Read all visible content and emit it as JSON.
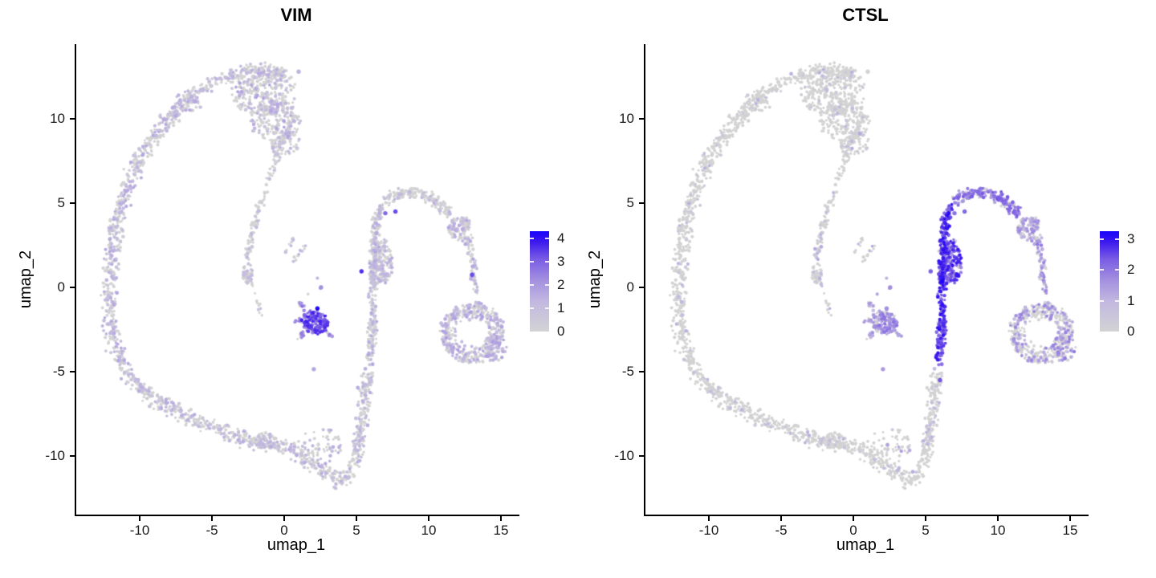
{
  "chart_data": {
    "type": "scatter",
    "description": "Two-panel UMAP gene-expression feature plot (single-cell). Same cell embedding in both panels, colored by expression of VIM (left) and CTSL (right). Grey = 0, blue = high.",
    "xlabel": "umap_1",
    "ylabel": "umap_2",
    "xlim": [
      -14.4,
      16.3
    ],
    "ylim": [
      -13.5,
      14.4
    ],
    "grid": false,
    "legend_position": "right-of-panel colorbar",
    "colors": {
      "background": "#ffffff",
      "axis": "#000000",
      "tick_text": "#1a1a1a",
      "zero_expression_point": "#d3d3d3",
      "gradient_stops": [
        [
          0,
          "#d3d3d3"
        ],
        [
          0.3,
          "#c2b8e0"
        ],
        [
          0.52,
          "#a28ee0"
        ],
        [
          0.72,
          "#7a5de4"
        ],
        [
          0.9,
          "#3a17ef"
        ],
        [
          1,
          "#1803fa"
        ]
      ]
    },
    "panels": [
      {
        "title": "VIM",
        "xlabel": "umap_1",
        "ylabel": "umap_2",
        "x_ticks": [
          -10,
          -5,
          0,
          5,
          10,
          15
        ],
        "y_ticks": [
          10,
          5,
          0,
          -5,
          -10
        ],
        "seed": 99,
        "colorbar": {
          "tick_labels": [
            4,
            3,
            2,
            1,
            0
          ],
          "vmax": 4.3
        },
        "expression": {
          "loop_top_arc": {
            "p": 0.32,
            "v": [
              0.6,
              1.6
            ]
          },
          "cloud_upper": {
            "p": 0.28,
            "v": [
              0.6,
              1.8
            ]
          },
          "cloud_mid": {
            "p": 0.28,
            "v": [
              0.6,
              1.8
            ]
          },
          "cloud_low": {
            "p": 0.25,
            "v": [
              0.6,
              1.5
            ]
          },
          "loop_left": {
            "p": 0.38,
            "v": [
              0.6,
              1.7
            ]
          },
          "loop_bottom": {
            "p": 0.32,
            "v": [
              0.6,
              1.6
            ]
          },
          "bottom_bump": {
            "p": 0.25,
            "v": [
              0.6,
              1.4
            ]
          },
          "bottom_scatter": {
            "p": 0.45,
            "v": [
              0.8,
              1.8
            ]
          },
          "right_strand": {
            "p": 0.3,
            "v": [
              0.7,
              1.7
            ]
          },
          "leg_clump": {
            "p": 0.3,
            "v": [
              0.7,
              1.7
            ]
          },
          "arch_top": {
            "p": 0.15,
            "v": [
              0.6,
              1.5
            ]
          },
          "arch_clump": {
            "p": 0.35,
            "v": [
              0.7,
              1.7
            ]
          },
          "arch_desc": {
            "p": 0.35,
            "v": [
              0.8,
              1.8
            ]
          },
          "ring": {
            "p": 0.42,
            "v": [
              0.7,
              1.9
            ]
          },
          "ring_edge": {
            "p": 0.55,
            "v": [
              0.8,
              2.0
            ]
          },
          "spur": {
            "p": 0.12,
            "v": [
              0.6,
              1.3
            ]
          },
          "spur_clump": {
            "p": 0.2,
            "v": [
              0.6,
              1.3
            ]
          },
          "spur_tail": {
            "p": 0.2,
            "v": [
              0.6,
              1.2
            ]
          },
          "center_blob": {
            "p": 0.96,
            "v": [
              2.1,
              3.8
            ]
          },
          "arm_up": {
            "p": 0.8,
            "v": [
              1.6,
              2.8
            ]
          },
          "arm_down": {
            "p": 0.8,
            "v": [
              1.6,
              2.8
            ]
          },
          "arm_right": {
            "p": 0.75,
            "v": [
              1.5,
              2.6
            ]
          },
          "arm_left": {
            "p": 0.75,
            "v": [
              1.5,
              2.6
            ]
          },
          "blob_dots": {
            "p": 0.6,
            "v": [
              1.2,
              2.4
            ]
          },
          "fork_a": {
            "p": 0.3,
            "v": [
              0.7,
              1.5
            ]
          },
          "fork_b": {
            "p": 0.3,
            "v": [
              0.7,
              1.5
            ]
          }
        }
      },
      {
        "title": "CTSL",
        "xlabel": "umap_1",
        "ylabel": "umap_2",
        "x_ticks": [
          -10,
          -5,
          0,
          5,
          10,
          15
        ],
        "y_ticks": [
          10,
          5,
          0,
          -5,
          -10
        ],
        "seed": 77,
        "colorbar": {
          "tick_labels": [
            3,
            2,
            1,
            0
          ],
          "vmax": 3.26
        },
        "expression": {
          "loop_top_arc": {
            "p": 0.04,
            "v": [
              0.6,
              1.2
            ]
          },
          "cloud_upper": {
            "p": 0.03,
            "v": [
              0.6,
              1.2
            ]
          },
          "cloud_mid": {
            "p": 0.03,
            "v": [
              0.6,
              1.2
            ]
          },
          "cloud_low": {
            "p": 0.05,
            "v": [
              0.6,
              1.2
            ]
          },
          "loop_left": {
            "p": 0.04,
            "v": [
              0.6,
              1.2
            ]
          },
          "loop_bottom": {
            "p": 0.05,
            "v": [
              0.6,
              1.2
            ]
          },
          "bottom_bump": {
            "p": 0.04,
            "v": [
              0.6,
              1.1
            ]
          },
          "bottom_scatter": {
            "p": 0.15,
            "v": [
              0.7,
              1.4
            ]
          },
          "right_strand": {
            "p": 0.97,
            "v": [
              1.8,
              3.1
            ]
          },
          "leg_clump": {
            "p": 0.93,
            "v": [
              1.5,
              3.0
            ]
          },
          "arch_top": {
            "p": 0.8,
            "v": [
              1.2,
              2.4
            ]
          },
          "arch_clump": {
            "p": 0.45,
            "v": [
              0.8,
              1.8
            ]
          },
          "arch_desc": {
            "p": 0.55,
            "v": [
              0.9,
              2.0
            ]
          },
          "ring": {
            "p": 0.3,
            "v": [
              0.8,
              1.9
            ]
          },
          "ring_edge": {
            "p": 0.45,
            "v": [
              0.8,
              2.0
            ]
          },
          "spur": {
            "p": 0.06,
            "v": [
              0.7,
              1.3
            ]
          },
          "spur_clump": {
            "p": 0.1,
            "v": [
              0.7,
              1.3
            ]
          },
          "spur_tail": {
            "p": 0.1,
            "v": [
              0.7,
              1.2
            ]
          },
          "center_blob": {
            "p": 0.8,
            "v": [
              0.9,
              2.1
            ]
          },
          "arm_up": {
            "p": 0.6,
            "v": [
              0.8,
              1.7
            ]
          },
          "arm_down": {
            "p": 0.6,
            "v": [
              0.8,
              1.7
            ]
          },
          "arm_right": {
            "p": 0.5,
            "v": [
              0.8,
              1.6
            ]
          },
          "arm_left": {
            "p": 0.5,
            "v": [
              0.8,
              1.6
            ]
          },
          "blob_dots": {
            "p": 0.6,
            "v": [
              1.0,
              1.8
            ]
          },
          "fork_a": {
            "p": 0.25,
            "v": [
              0.8,
              1.5
            ]
          },
          "fork_b": {
            "p": 0.2,
            "v": [
              0.8,
              1.4
            ]
          }
        }
      }
    ],
    "structures": [
      {
        "id": "loop_top_arc",
        "kind": "path",
        "pts": [
          [
            -7.3,
            10.9
          ],
          [
            -6.0,
            11.7
          ],
          [
            -4.6,
            12.3
          ],
          [
            -3.0,
            12.75
          ],
          [
            -1.4,
            12.9
          ],
          [
            0.2,
            12.55
          ]
        ],
        "w": 0.4,
        "n": 230
      },
      {
        "id": "cloud_upper",
        "kind": "blob",
        "c": [
          -1.4,
          11.5
        ],
        "rx": 2.2,
        "ry": 1.3,
        "n": 260
      },
      {
        "id": "cloud_mid",
        "kind": "blob",
        "c": [
          -0.6,
          9.8
        ],
        "rx": 1.7,
        "ry": 1.2,
        "n": 180
      },
      {
        "id": "cloud_low",
        "kind": "blob",
        "c": [
          0.0,
          8.6
        ],
        "rx": 1.1,
        "ry": 0.8,
        "n": 60
      },
      {
        "id": "loop_left",
        "kind": "path",
        "pts": [
          [
            -5.9,
            11.35
          ],
          [
            -7.6,
            10.3
          ],
          [
            -9.1,
            8.9
          ],
          [
            -10.3,
            7.2
          ],
          [
            -11.15,
            5.2
          ],
          [
            -11.75,
            3.1
          ],
          [
            -12.05,
            0.9
          ],
          [
            -12.1,
            -1.3
          ],
          [
            -11.8,
            -3.3
          ],
          [
            -11.15,
            -4.7
          ]
        ],
        "w": 0.5,
        "n": 620
      },
      {
        "id": "loop_bottom",
        "kind": "path",
        "pts": [
          [
            -11.15,
            -4.7
          ],
          [
            -10.1,
            -5.9
          ],
          [
            -8.7,
            -6.8
          ],
          [
            -7.1,
            -7.5
          ],
          [
            -5.4,
            -8.1
          ],
          [
            -3.7,
            -8.75
          ],
          [
            -2.1,
            -9.2
          ],
          [
            -0.7,
            -9.3
          ],
          [
            0.4,
            -9.55
          ],
          [
            1.6,
            -10.15
          ],
          [
            2.8,
            -10.95
          ],
          [
            3.8,
            -11.5
          ],
          [
            4.45,
            -11.15
          ],
          [
            4.95,
            -10.1
          ],
          [
            5.25,
            -8.9
          ],
          [
            5.5,
            -7.5
          ],
          [
            5.65,
            -6.1
          ],
          [
            5.8,
            -4.9
          ]
        ],
        "w": 0.45,
        "n": 720
      },
      {
        "id": "bottom_bump",
        "kind": "blob",
        "c": [
          -1.3,
          -9.1
        ],
        "rx": 0.85,
        "ry": 0.45,
        "n": 70
      },
      {
        "id": "bottom_scatter",
        "kind": "blob",
        "c": [
          2.7,
          -9.4
        ],
        "rx": 1.5,
        "ry": 1.0,
        "n": 55
      },
      {
        "id": "right_strand",
        "kind": "path",
        "pts": [
          [
            5.95,
            -4.5
          ],
          [
            6.1,
            -3.1
          ],
          [
            6.15,
            -1.6
          ],
          [
            6.1,
            -0.1
          ],
          [
            6.15,
            1.4
          ],
          [
            6.25,
            2.9
          ],
          [
            6.4,
            4.1
          ],
          [
            6.8,
            4.9
          ]
        ],
        "w": 0.27,
        "n": 300
      },
      {
        "id": "leg_clump",
        "kind": "blob",
        "c": [
          6.8,
          1.5
        ],
        "rx": 0.7,
        "ry": 1.3,
        "n": 150
      },
      {
        "id": "arch_top",
        "kind": "path",
        "pts": [
          [
            7.0,
            5.1
          ],
          [
            7.8,
            5.5
          ],
          [
            8.8,
            5.65
          ],
          [
            9.8,
            5.45
          ],
          [
            10.7,
            5.0
          ],
          [
            11.4,
            4.3
          ]
        ],
        "w": 0.33,
        "n": 170
      },
      {
        "id": "arch_clump",
        "kind": "blob",
        "c": [
          12.2,
          3.5
        ],
        "rx": 0.8,
        "ry": 0.75,
        "n": 110
      },
      {
        "id": "arch_desc",
        "kind": "path",
        "pts": [
          [
            12.7,
            2.8
          ],
          [
            13.0,
            1.8
          ],
          [
            13.2,
            0.7
          ],
          [
            13.3,
            -0.4
          ]
        ],
        "w": 0.25,
        "n": 70
      },
      {
        "id": "ring",
        "kind": "ring",
        "c": [
          13.0,
          -2.7
        ],
        "rx": 2.2,
        "ry": 1.75,
        "inner": 0.45,
        "n": 430
      },
      {
        "id": "ring_edge",
        "kind": "blob",
        "c": [
          14.6,
          -3.6
        ],
        "rx": 0.8,
        "ry": 0.8,
        "n": 55
      },
      {
        "id": "spur",
        "kind": "path",
        "pts": [
          [
            0.3,
            9.6
          ],
          [
            -0.2,
            8.3
          ],
          [
            -0.75,
            7.0
          ],
          [
            -1.3,
            5.7
          ],
          [
            -1.85,
            4.3
          ],
          [
            -2.3,
            2.9
          ],
          [
            -2.6,
            1.6
          ]
        ],
        "w": 0.24,
        "n": 140
      },
      {
        "id": "spur_clump",
        "kind": "blob",
        "c": [
          -2.55,
          0.85
        ],
        "rx": 0.38,
        "ry": 0.6,
        "n": 55
      },
      {
        "id": "spur_tail",
        "kind": "path",
        "pts": [
          [
            -2.3,
            0.3
          ],
          [
            -1.9,
            -0.8
          ],
          [
            -1.5,
            -1.8
          ]
        ],
        "w": 0.15,
        "n": 12
      },
      {
        "id": "center_blob",
        "kind": "blob",
        "c": [
          2.15,
          -2.05
        ],
        "rx": 0.95,
        "ry": 0.7,
        "n": 150
      },
      {
        "id": "arm_up",
        "kind": "path",
        "pts": [
          [
            1.45,
            -1.25
          ],
          [
            0.85,
            -0.7
          ]
        ],
        "w": 0.12,
        "n": 12
      },
      {
        "id": "arm_down",
        "kind": "path",
        "pts": [
          [
            1.35,
            -2.7
          ],
          [
            0.9,
            -3.15
          ]
        ],
        "w": 0.12,
        "n": 10
      },
      {
        "id": "arm_right",
        "kind": "path",
        "pts": [
          [
            2.85,
            -2.55
          ],
          [
            3.3,
            -2.95
          ]
        ],
        "w": 0.1,
        "n": 8
      },
      {
        "id": "arm_left",
        "kind": "path",
        "pts": [
          [
            1.3,
            -1.95
          ],
          [
            0.7,
            -2.0
          ]
        ],
        "w": 0.1,
        "n": 8
      },
      {
        "id": "blob_dots",
        "kind": "dots",
        "pts": [
          [
            1.65,
            -0.4
          ],
          [
            2.5,
            -0.05
          ],
          [
            2.3,
            0.55
          ]
        ],
        "n": 3
      },
      {
        "id": "fork_a",
        "kind": "path",
        "pts": [
          [
            0.45,
            1.25
          ],
          [
            1.55,
            2.6
          ]
        ],
        "w": 0.14,
        "n": 13
      },
      {
        "id": "fork_b",
        "kind": "path",
        "pts": [
          [
            0.05,
            2.0
          ],
          [
            0.75,
            3.05
          ]
        ],
        "w": 0.12,
        "n": 8
      }
    ],
    "highlight_dots": [
      {
        "pos": [
          5.35,
          0.95
        ],
        "values": [
          3.6,
          2.3
        ]
      },
      {
        "pos": [
          7.7,
          4.5
        ],
        "values": [
          3.3,
          2.2
        ]
      },
      {
        "pos": [
          7.0,
          4.4
        ],
        "values": [
          2.9,
          2.1
        ]
      },
      {
        "pos": [
          13.0,
          0.75
        ],
        "values": [
          3.3,
          1.4
        ]
      },
      {
        "pos": [
          2.3,
          -1.25
        ],
        "values": [
          4.2,
          1.6
        ]
      },
      {
        "pos": [
          6.15,
          0.35
        ],
        "values": [
          0.9,
          3.2
        ]
      },
      {
        "pos": [
          6.0,
          -5.5
        ],
        "values": [
          1.0,
          2.4
        ]
      },
      {
        "pos": [
          2.55,
          0.0
        ],
        "values": [
          2.2,
          1.7
        ]
      },
      {
        "pos": [
          2.05,
          -4.85
        ],
        "values": [
          1.7,
          1.5
        ]
      },
      {
        "pos": [
          1.0,
          12.8
        ],
        "values": [
          1.4,
          0.0
        ]
      }
    ]
  }
}
